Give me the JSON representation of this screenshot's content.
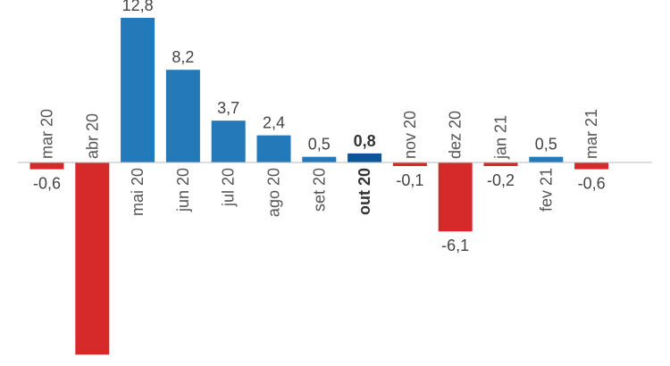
{
  "chart_data": {
    "type": "bar",
    "categories": [
      "mar 20",
      "abr 20",
      "mai 20",
      "jun 20",
      "jul 20",
      "ago 20",
      "set 20",
      "out 20",
      "nov 20",
      "dez 20",
      "jan 21",
      "fev 21",
      "mar 21"
    ],
    "values": [
      -0.6,
      -17.0,
      12.8,
      8.2,
      3.7,
      2.4,
      0.5,
      0.8,
      -0.1,
      -6.1,
      -0.2,
      0.5,
      -0.6
    ],
    "value_labels": [
      "-0,6",
      "",
      "12,8",
      "8,2",
      "3,7",
      "2,4",
      "0,5",
      "0,8",
      "-0,1",
      "-6,1",
      "-0,2",
      "0,5",
      "-0,6"
    ],
    "highlight_index": 7,
    "title": "",
    "xlabel": "",
    "ylabel": "",
    "ylim": [
      -18,
      13.5
    ],
    "colors": {
      "positive": "#2479b8",
      "negative": "#d62a2a",
      "highlight": "#0b5696",
      "baseline": "#bbbbbb"
    }
  }
}
